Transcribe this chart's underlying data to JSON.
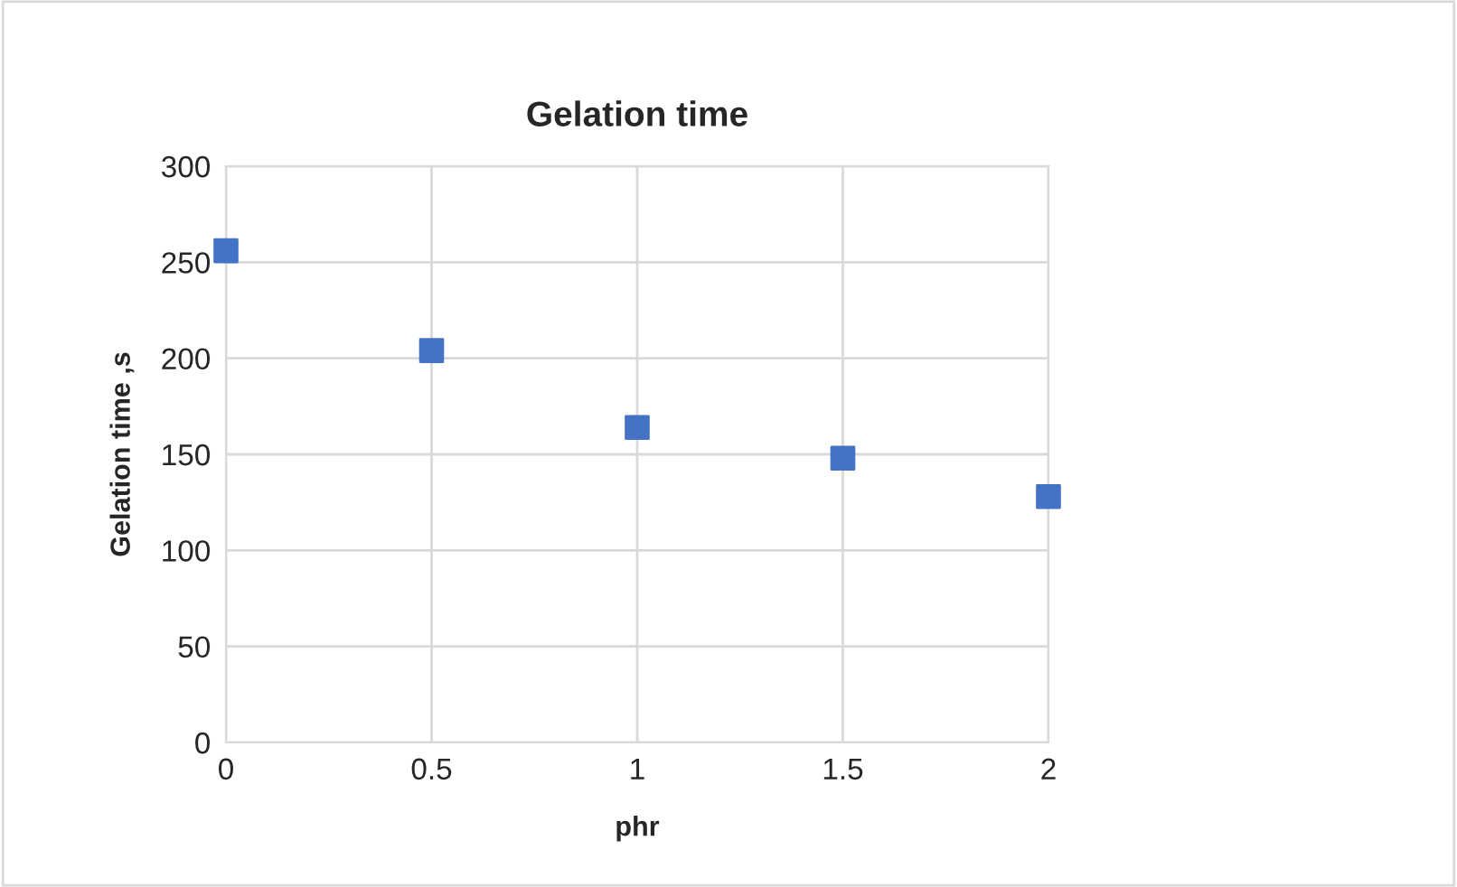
{
  "chart_data": {
    "type": "scatter",
    "title": "Gelation time",
    "xlabel": "phr",
    "ylabel": "Gelation time ,s",
    "x": [
      0,
      0.5,
      1,
      1.5,
      2
    ],
    "series": [
      {
        "color": "#4472c4",
        "values": [
          256,
          204,
          164,
          148,
          128
        ]
      }
    ],
    "xlim": [
      0,
      2
    ],
    "xticks": [
      0,
      0.5,
      1,
      1.5,
      2
    ],
    "ylim": [
      0,
      300
    ],
    "yticks": [
      0,
      50,
      100,
      150,
      200,
      250,
      300
    ],
    "grid": true,
    "marker": "square"
  }
}
